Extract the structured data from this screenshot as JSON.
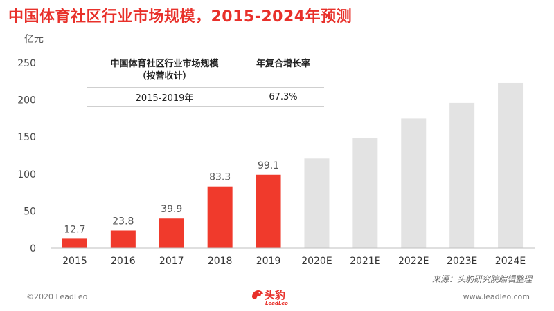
{
  "title": "中国体育社区行业市场规模，2015-2024年预测",
  "unit_label": "亿元",
  "cagr_table": {
    "header_col1_line1": "中国体育社区行业市场规模",
    "header_col1_line2": "（按营收计）",
    "header_col2": "年复合增长率",
    "row_period": "2015-2019年",
    "row_rate": "67.3%"
  },
  "source": "来源：头豹研究院编辑整理",
  "copyright": "©2020 LeadLeo",
  "website": "www.leadleo.com",
  "logo": {
    "name": "头豹",
    "sub": "LeadLeo"
  },
  "colors": {
    "actual": "#f03a2c",
    "forecast": "#e3e3e3",
    "title": "#e8302a"
  },
  "chart_data": {
    "type": "bar",
    "categories": [
      "2015",
      "2016",
      "2017",
      "2018",
      "2019",
      "2020E",
      "2021E",
      "2022E",
      "2023E",
      "2024E"
    ],
    "values": [
      12.7,
      23.8,
      39.9,
      83.3,
      99.1,
      121,
      149,
      175,
      196,
      223
    ],
    "data_labels": [
      "12.7",
      "23.8",
      "39.9",
      "83.3",
      "99.1",
      "",
      "",
      "",
      "",
      ""
    ],
    "forecast_from_index": 5,
    "ylim": [
      0,
      250
    ],
    "yticks": [
      0,
      50,
      100,
      150,
      200,
      250
    ],
    "ylabel": "亿元",
    "xlabel": "",
    "grid": false
  }
}
